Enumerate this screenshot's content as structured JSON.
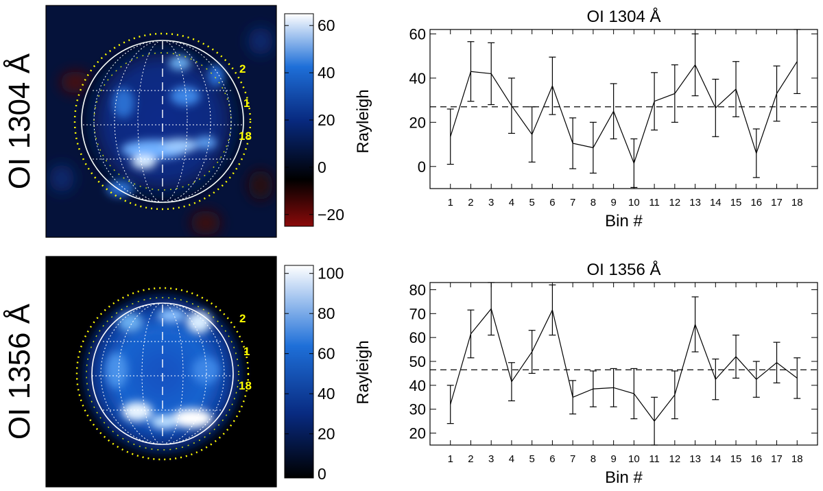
{
  "panels": [
    {
      "row_label": "OI 1304 Å",
      "colorbar": {
        "label": "Rayleigh",
        "min": -25,
        "max": 65,
        "ticks": [
          60,
          40,
          20,
          0,
          -20
        ],
        "tick_labels": [
          "60",
          "40",
          "20",
          "0",
          "−20"
        ],
        "colors": [
          "#8b0a0a",
          "#000000",
          "#082a80",
          "#1e6fd8",
          "#ffffff"
        ]
      },
      "image": {
        "colormap": "red-black-blue-white",
        "bin_markers": [
          "2",
          "1",
          "18"
        ],
        "marker_color": "#ffff00"
      }
    },
    {
      "row_label": "OI 1356 Å",
      "colorbar": {
        "label": "Rayleigh",
        "min": -2,
        "max": 104,
        "ticks": [
          100,
          80,
          60,
          40,
          20,
          0
        ],
        "tick_labels": [
          "100",
          "80",
          "60",
          "40",
          "20",
          "0"
        ],
        "colors": [
          "#000000",
          "#082a80",
          "#1e6fd8",
          "#ffffff"
        ]
      },
      "image": {
        "colormap": "black-blue-white",
        "bin_markers": [
          "2",
          "1",
          "18"
        ],
        "marker_color": "#ffff00"
      }
    }
  ],
  "chart_data": [
    {
      "type": "line",
      "title": "OI 1304 Å",
      "xlabel": "Bin #",
      "ylabel": "",
      "x": [
        1,
        2,
        3,
        4,
        5,
        6,
        7,
        8,
        9,
        10,
        11,
        12,
        13,
        14,
        15,
        16,
        17,
        18
      ],
      "values": [
        13.5,
        43,
        42,
        27.5,
        14.5,
        36.5,
        10.5,
        8.5,
        25,
        1.5,
        29.5,
        33,
        46,
        26.5,
        35,
        6,
        33,
        47.5
      ],
      "errors": [
        12.5,
        13.5,
        14,
        12.5,
        12.5,
        13,
        11.5,
        11.5,
        12.5,
        11,
        13,
        13,
        14,
        13,
        12.5,
        11,
        12.5,
        14.5
      ],
      "mean": 27,
      "ylim": [
        -10,
        62
      ],
      "yticks": [
        0,
        20,
        40,
        60
      ],
      "ytick_labels": [
        "0",
        "20",
        "40",
        "60"
      ],
      "xlim": [
        0,
        19
      ]
    },
    {
      "type": "line",
      "title": "OI 1356 Å",
      "xlabel": "Bin #",
      "ylabel": "",
      "x": [
        1,
        2,
        3,
        4,
        5,
        6,
        7,
        8,
        9,
        10,
        11,
        12,
        13,
        14,
        15,
        16,
        17,
        18
      ],
      "values": [
        32,
        61.5,
        72,
        41.5,
        54,
        71.5,
        35,
        38.5,
        39,
        36.5,
        25,
        36,
        65.5,
        42.5,
        52,
        42.5,
        49.5,
        43
      ],
      "errors": [
        8,
        10,
        11,
        8,
        9,
        10.5,
        7,
        7.5,
        8,
        10.5,
        10,
        10,
        11.5,
        8.5,
        9,
        7.5,
        8.5,
        8.5
      ],
      "mean": 46.5,
      "ylim": [
        15,
        83
      ],
      "yticks": [
        20,
        30,
        40,
        50,
        60,
        70,
        80
      ],
      "ytick_labels": [
        "20",
        "30",
        "40",
        "50",
        "60",
        "70",
        "80"
      ],
      "xlim": [
        0,
        19
      ]
    }
  ]
}
